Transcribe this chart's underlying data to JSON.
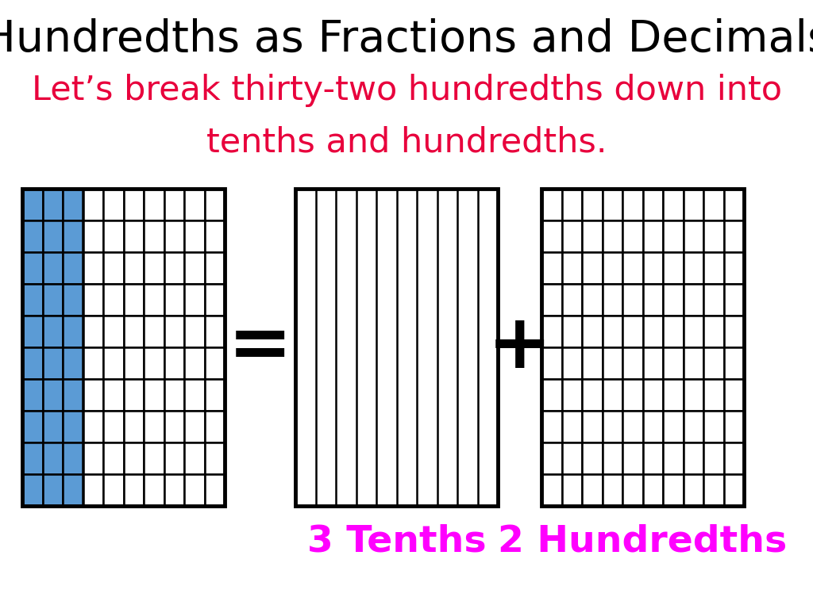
{
  "title": "Hundredths as Fractions and Decimals",
  "subtitle_line1": "Let’s break thirty-two hundredths down into",
  "subtitle_line2": "tenths and hundredths.",
  "title_color": "#000000",
  "subtitle_color": "#e8003c",
  "label1": "3 Tenths",
  "label2": "2 Hundredths",
  "label_color": "#ff00ff",
  "blue_color": "#5b9bd5",
  "grid_color": "#000000",
  "background_color": "#ffffff",
  "blue_cols": 3,
  "grid_rows": 10,
  "grid_cols": 10,
  "fig_width": 10.24,
  "fig_height": 7.68,
  "title_fontsize": 40,
  "subtitle_fontsize": 31,
  "label_fontsize": 34
}
